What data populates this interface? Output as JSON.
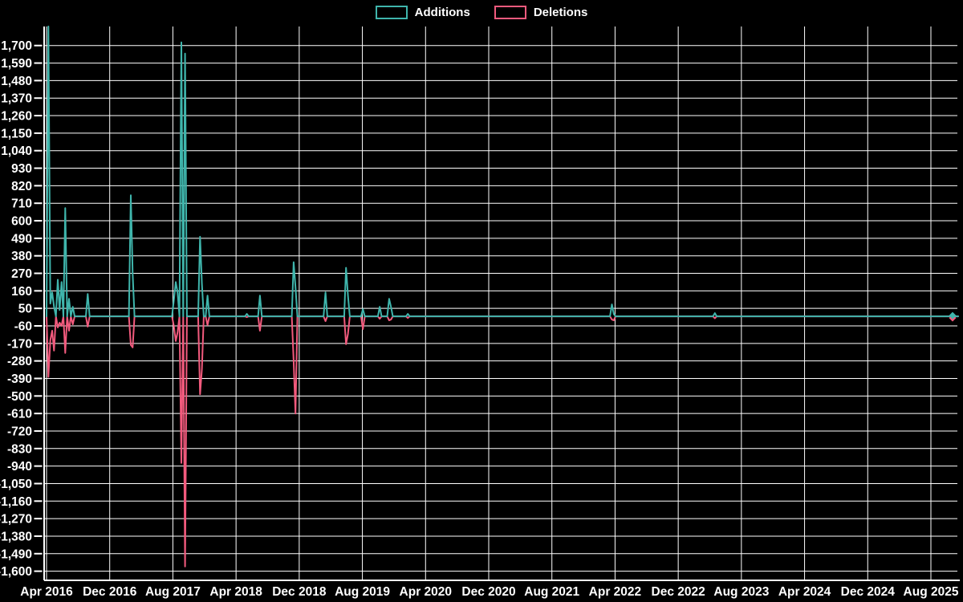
{
  "legend": {
    "additions_label": "Additions",
    "deletions_label": "Deletions"
  },
  "colors": {
    "background": "#000000",
    "additions": "#3fb5ac",
    "deletions": "#f25a7d",
    "grid": "#ffffff",
    "axis": "#ffffff",
    "text": "#ffffff"
  },
  "chart_data": {
    "type": "line",
    "title": "",
    "xlabel": "",
    "ylabel": "",
    "grid": true,
    "legend_position": "top-center",
    "x_unit": "weeks (weekly code additions/deletions), Apr 2016 - Aug 2025",
    "total_weeks": 487,
    "baseline_value": 0,
    "y_axis_range": [
      -1660,
      1820
    ],
    "y_tick_step": 110,
    "y_tick_labels": [
      "1,700",
      "1,590",
      "1,480",
      "1,370",
      "1,260",
      "1,150",
      "1,040",
      "930",
      "820",
      "710",
      "600",
      "490",
      "380",
      "270",
      "160",
      "50",
      "-60",
      "-170",
      "-280",
      "-390",
      "-500",
      "-610",
      "-720",
      "-830",
      "-940",
      "-1,050",
      "-1,160",
      "-1,270",
      "-1,380",
      "-1,490",
      "-1,600"
    ],
    "y_tick_values": [
      1700,
      1590,
      1480,
      1370,
      1260,
      1150,
      1040,
      930,
      820,
      710,
      600,
      490,
      380,
      270,
      160,
      50,
      -60,
      -170,
      -280,
      -390,
      -500,
      -610,
      -720,
      -830,
      -940,
      -1050,
      -1160,
      -1270,
      -1380,
      -1490,
      -1600
    ],
    "x_tick_labels": [
      "Apr 2016",
      "Dec 2016",
      "Aug 2017",
      "Apr 2018",
      "Dec 2018",
      "Aug 2019",
      "Apr 2020",
      "Dec 2020",
      "Aug 2021",
      "Apr 2022",
      "Dec 2022",
      "Aug 2023",
      "Apr 2024",
      "Dec 2024",
      "Aug 2025"
    ],
    "series": [
      {
        "name": "Additions",
        "color": "#3fb5ac",
        "spikes": [
          [
            1,
            1820
          ],
          [
            2,
            80
          ],
          [
            3,
            150
          ],
          [
            4,
            60
          ],
          [
            6,
            230
          ],
          [
            7,
            40
          ],
          [
            8,
            215
          ],
          [
            10,
            680
          ],
          [
            12,
            110
          ],
          [
            14,
            60
          ],
          [
            22,
            140
          ],
          [
            45,
            760
          ],
          [
            46,
            270
          ],
          [
            68,
            100
          ],
          [
            69,
            215
          ],
          [
            70,
            150
          ],
          [
            72,
            1720
          ],
          [
            74,
            1650
          ],
          [
            82,
            500
          ],
          [
            83,
            205
          ],
          [
            86,
            130
          ],
          [
            107,
            15
          ],
          [
            114,
            130
          ],
          [
            132,
            340
          ],
          [
            133,
            185
          ],
          [
            149,
            150
          ],
          [
            160,
            305
          ],
          [
            161,
            130
          ],
          [
            169,
            45
          ],
          [
            178,
            60
          ],
          [
            183,
            110
          ],
          [
            184,
            60
          ],
          [
            193,
            15
          ],
          [
            302,
            75
          ],
          [
            303,
            15
          ],
          [
            357,
            20
          ],
          [
            484,
            5
          ]
        ]
      },
      {
        "name": "Deletions",
        "color": "#f25a7d",
        "spikes": [
          [
            1,
            -380
          ],
          [
            2,
            -150
          ],
          [
            3,
            -90
          ],
          [
            4,
            -215
          ],
          [
            6,
            -70
          ],
          [
            7,
            -40
          ],
          [
            8,
            -60
          ],
          [
            10,
            -230
          ],
          [
            12,
            -90
          ],
          [
            14,
            -50
          ],
          [
            22,
            -65
          ],
          [
            45,
            -180
          ],
          [
            46,
            -195
          ],
          [
            68,
            -60
          ],
          [
            69,
            -155
          ],
          [
            70,
            -100
          ],
          [
            72,
            -920
          ],
          [
            74,
            -1570
          ],
          [
            82,
            -490
          ],
          [
            83,
            -330
          ],
          [
            86,
            -55
          ],
          [
            107,
            -5
          ],
          [
            114,
            -90
          ],
          [
            132,
            -280
          ],
          [
            133,
            -610
          ],
          [
            149,
            -30
          ],
          [
            160,
            -175
          ],
          [
            161,
            -110
          ],
          [
            169,
            -80
          ],
          [
            178,
            -15
          ],
          [
            183,
            -25
          ],
          [
            184,
            -20
          ],
          [
            193,
            -10
          ],
          [
            302,
            -20
          ],
          [
            303,
            -25
          ],
          [
            357,
            -12
          ],
          [
            484,
            -10
          ]
        ],
        "plotted_as": "negative values below zero baseline"
      }
    ],
    "end_markers": {
      "week": 484,
      "additions": 5,
      "deletions": -10,
      "symbol": "diamond"
    }
  }
}
